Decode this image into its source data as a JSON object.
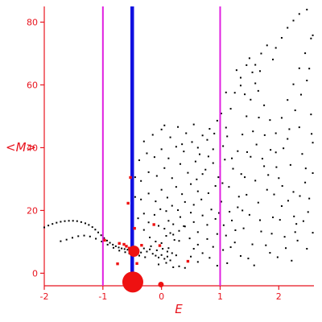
{
  "chart_data": {
    "type": "scatter",
    "title": "",
    "xlabel": "E",
    "ylabel": "<M>",
    "xlim": [
      -2,
      2.6
    ],
    "ylim": [
      -4,
      85
    ],
    "x_ticks": [
      -2,
      -1,
      0,
      1,
      2
    ],
    "y_ticks": [
      0,
      20,
      40,
      60,
      80
    ],
    "grid": false,
    "colors": {
      "axis": "#e8141e",
      "points": "#000000",
      "highlight": "#ee1111",
      "magenta_lines": "#e020e0",
      "blue_line": "#1010e0"
    },
    "vertical_lines": [
      {
        "x": -1.0,
        "color": "magenta"
      },
      {
        "x": 1.0,
        "color": "magenta"
      },
      {
        "x": -0.5,
        "color": "blue"
      }
    ],
    "large_markers": [
      {
        "x": -0.49,
        "y": -2.8,
        "size": "large"
      },
      {
        "x": -0.47,
        "y": 7.0,
        "size": "medium"
      },
      {
        "x": -0.01,
        "y": -3.6,
        "size": "small"
      }
    ],
    "highlight_points": [
      {
        "x": -0.53,
        "y": 30.5
      },
      {
        "x": -0.57,
        "y": 22.3
      },
      {
        "x": -0.46,
        "y": 14.3
      },
      {
        "x": -0.13,
        "y": 15.5
      },
      {
        "x": -0.03,
        "y": 8.8
      },
      {
        "x": -0.72,
        "y": 9.5
      },
      {
        "x": -0.64,
        "y": 9.2
      },
      {
        "x": -0.6,
        "y": 8.6
      },
      {
        "x": -0.55,
        "y": 8.0
      },
      {
        "x": -0.75,
        "y": 3.0
      },
      {
        "x": -0.42,
        "y": 3.1
      },
      {
        "x": -0.97,
        "y": 10.5
      },
      {
        "x": 0.45,
        "y": 3.8
      },
      {
        "x": -0.34,
        "y": 8.9
      }
    ],
    "series": [
      {
        "points": [
          [
            -2.0,
            14.6
          ],
          [
            -1.93,
            15.2
          ],
          [
            -1.86,
            15.7
          ],
          [
            -1.79,
            16.1
          ],
          [
            -1.72,
            16.4
          ],
          [
            -1.65,
            16.6
          ],
          [
            -1.58,
            16.7
          ],
          [
            -1.51,
            16.7
          ],
          [
            -1.44,
            16.6
          ],
          [
            -1.37,
            16.3
          ],
          [
            -1.3,
            15.9
          ],
          [
            -1.24,
            15.4
          ],
          [
            -1.18,
            14.7
          ],
          [
            -1.13,
            13.9
          ],
          [
            -1.08,
            13.0
          ],
          [
            -1.03,
            12.1
          ],
          [
            -0.98,
            11.2
          ],
          [
            -0.93,
            10.4
          ],
          [
            -0.88,
            9.7
          ],
          [
            -0.83,
            9.1
          ],
          [
            -0.78,
            8.6
          ],
          [
            -0.73,
            8.2
          ],
          [
            -0.68,
            7.9
          ],
          [
            -0.63,
            7.7
          ],
          [
            -0.58,
            7.5
          ],
          [
            -1.72,
            10.2
          ],
          [
            -1.62,
            10.7
          ],
          [
            -1.52,
            11.3
          ],
          [
            -1.42,
            11.8
          ],
          [
            -1.32,
            12.0
          ],
          [
            -1.22,
            11.7
          ],
          [
            -1.12,
            11.0
          ],
          [
            -1.02,
            10.1
          ],
          [
            -0.92,
            9.1
          ],
          [
            -0.82,
            8.1
          ],
          [
            -0.72,
            7.2
          ],
          [
            -0.62,
            6.7
          ],
          [
            -0.55,
            6.3
          ],
          [
            -0.4,
            7.4
          ],
          [
            -0.35,
            6.6
          ],
          [
            -0.3,
            7.9
          ],
          [
            -0.25,
            6.9
          ],
          [
            -0.2,
            7.6
          ],
          [
            -0.15,
            6.2
          ],
          [
            -0.1,
            5.6
          ],
          [
            -0.05,
            5.0
          ],
          [
            0.0,
            5.8
          ],
          [
            0.05,
            4.6
          ],
          [
            0.1,
            5.3
          ],
          [
            0.15,
            4.1
          ],
          [
            -0.38,
            5.6
          ],
          [
            -0.28,
            5.1
          ],
          [
            -0.18,
            8.6
          ],
          [
            -0.08,
            7.3
          ],
          [
            0.02,
            7.8
          ],
          [
            0.1,
            6.9
          ],
          [
            0.18,
            6.4
          ],
          [
            0.25,
            5.7
          ],
          [
            -0.2,
            11.4
          ],
          [
            -0.1,
            10.1
          ],
          [
            0.0,
            9.6
          ],
          [
            0.08,
            11.9
          ],
          [
            0.15,
            12.8
          ],
          [
            0.22,
            10.6
          ],
          [
            0.3,
            13.5
          ],
          [
            -0.3,
            13.8
          ],
          [
            -0.22,
            16.2
          ],
          [
            -0.05,
            15.1
          ],
          [
            0.05,
            14.2
          ],
          [
            0.12,
            16.7
          ],
          [
            0.2,
            15.6
          ],
          [
            0.32,
            17.9
          ],
          [
            0.38,
            15.0
          ],
          [
            -0.4,
            17.5
          ],
          [
            -0.3,
            19.0
          ],
          [
            -0.12,
            18.6
          ],
          [
            -0.02,
            20.4
          ],
          [
            0.08,
            19.8
          ],
          [
            0.18,
            21.5
          ],
          [
            0.28,
            20.1
          ],
          [
            0.4,
            22.7
          ],
          [
            0.5,
            19.3
          ],
          [
            -0.45,
            24.3
          ],
          [
            -0.35,
            23.5
          ],
          [
            -0.22,
            25.4
          ],
          [
            -0.1,
            22.9
          ],
          [
            0.0,
            26.6
          ],
          [
            0.1,
            24.1
          ],
          [
            0.25,
            27.5
          ],
          [
            0.35,
            25.2
          ],
          [
            0.5,
            28.4
          ],
          [
            0.62,
            26.1
          ],
          [
            -0.45,
            30.6
          ],
          [
            -0.35,
            29.4
          ],
          [
            -0.22,
            32.2
          ],
          [
            -0.08,
            31.0
          ],
          [
            0.05,
            33.5
          ],
          [
            0.18,
            30.3
          ],
          [
            0.32,
            34.8
          ],
          [
            0.45,
            32.0
          ],
          [
            0.58,
            35.6
          ],
          [
            0.7,
            31.6
          ],
          [
            -0.38,
            36.0
          ],
          [
            -0.25,
            38.2
          ],
          [
            -0.12,
            37.0
          ],
          [
            0.0,
            39.5
          ],
          [
            0.12,
            36.6
          ],
          [
            0.25,
            40.3
          ],
          [
            0.38,
            38.8
          ],
          [
            0.52,
            41.8
          ],
          [
            0.65,
            37.9
          ],
          [
            0.78,
            42.5
          ],
          [
            -0.3,
            42.0
          ],
          [
            -0.15,
            44.1
          ],
          [
            0.0,
            45.8
          ],
          [
            0.15,
            43.3
          ],
          [
            0.28,
            46.6
          ],
          [
            0.42,
            44.6
          ],
          [
            0.55,
            47.4
          ],
          [
            0.7,
            43.9
          ],
          [
            0.82,
            46.0
          ],
          [
            0.95,
            48.6
          ],
          [
            0.05,
            47.1
          ],
          [
            0.35,
            41.1
          ],
          [
            0.62,
            40.0
          ],
          [
            0.88,
            39.5
          ],
          [
            0.2,
            12.3
          ],
          [
            0.3,
            10.3
          ],
          [
            0.4,
            14.9
          ],
          [
            0.48,
            11.1
          ],
          [
            0.55,
            16.3
          ],
          [
            0.62,
            13.1
          ],
          [
            0.7,
            18.4
          ],
          [
            0.78,
            15.4
          ],
          [
            0.85,
            20.3
          ],
          [
            0.92,
            17.3
          ],
          [
            0.55,
            7.8
          ],
          [
            0.62,
            9.1
          ],
          [
            0.7,
            6.4
          ],
          [
            0.78,
            10.9
          ],
          [
            0.88,
            8.4
          ],
          [
            0.95,
            12.5
          ],
          [
            0.5,
            5.3
          ],
          [
            0.62,
            3.6
          ],
          [
            0.82,
            4.9
          ],
          [
            0.95,
            2.4
          ],
          [
            0.3,
            2.2
          ],
          [
            0.4,
            1.7
          ],
          [
            0.55,
            21.8
          ],
          [
            0.68,
            23.5
          ],
          [
            0.8,
            25.5
          ],
          [
            0.92,
            27.8
          ],
          [
            0.6,
            29.9
          ],
          [
            0.75,
            33.0
          ],
          [
            0.88,
            35.1
          ],
          [
            0.97,
            30.6
          ],
          [
            -0.05,
            2.8
          ],
          [
            0.08,
            3.3
          ],
          [
            0.2,
            1.9
          ],
          [
            0.12,
            8.0
          ],
          [
            1.05,
            7.4
          ],
          [
            1.1,
            12.0
          ],
          [
            1.12,
            3.2
          ],
          [
            1.2,
            16.8
          ],
          [
            1.25,
            9.8
          ],
          [
            1.3,
            21.0
          ],
          [
            1.35,
            5.5
          ],
          [
            1.4,
            14.3
          ],
          [
            1.45,
            25.0
          ],
          [
            1.5,
            18.6
          ],
          [
            1.55,
            9.2
          ],
          [
            1.6,
            29.5
          ],
          [
            1.65,
            22.5
          ],
          [
            1.7,
            13.3
          ],
          [
            1.75,
            34.1
          ],
          [
            1.8,
            26.6
          ],
          [
            1.85,
            6.5
          ],
          [
            1.9,
            17.8
          ],
          [
            1.95,
            38.5
          ],
          [
            2.0,
            30.3
          ],
          [
            2.05,
            21.4
          ],
          [
            2.1,
            11.6
          ],
          [
            2.15,
            42.8
          ],
          [
            2.2,
            34.5
          ],
          [
            2.25,
            25.9
          ],
          [
            2.3,
            15.7
          ],
          [
            2.35,
            46.5
          ],
          [
            2.4,
            38.0
          ],
          [
            2.45,
            28.9
          ],
          [
            2.5,
            19.5
          ],
          [
            2.55,
            50.6
          ],
          [
            2.58,
            41.6
          ],
          [
            1.15,
            27.5
          ],
          [
            1.22,
            33.3
          ],
          [
            1.3,
            38.9
          ],
          [
            1.38,
            44.2
          ],
          [
            1.45,
            50.0
          ],
          [
            1.52,
            55.3
          ],
          [
            1.6,
            60.5
          ],
          [
            1.68,
            64.4
          ],
          [
            1.05,
            40.5
          ],
          [
            1.1,
            46.4
          ],
          [
            1.18,
            52.4
          ],
          [
            1.25,
            57.5
          ],
          [
            1.35,
            62.3
          ],
          [
            1.45,
            66.3
          ],
          [
            1.55,
            64.0
          ],
          [
            1.65,
            58.1
          ],
          [
            1.75,
            53.5
          ],
          [
            1.85,
            48.8
          ],
          [
            1.95,
            44.6
          ],
          [
            2.05,
            49.5
          ],
          [
            2.15,
            55.2
          ],
          [
            2.25,
            60.2
          ],
          [
            2.35,
            65.3
          ],
          [
            2.45,
            70.1
          ],
          [
            2.55,
            74.8
          ],
          [
            1.95,
            71.8
          ],
          [
            2.05,
            75.0
          ],
          [
            2.15,
            78.2
          ],
          [
            2.25,
            80.5
          ],
          [
            2.35,
            82.6
          ],
          [
            2.48,
            84.0
          ],
          [
            2.58,
            75.8
          ],
          [
            2.52,
            65.2
          ],
          [
            1.7,
            70.0
          ],
          [
            1.8,
            72.6
          ],
          [
            1.9,
            68.1
          ],
          [
            1.6,
            66.4
          ],
          [
            1.5,
            68.5
          ],
          [
            1.28,
            64.7
          ],
          [
            1.35,
            59.8
          ],
          [
            1.42,
            57.0
          ],
          [
            1.12,
            43.6
          ],
          [
            1.08,
            36.2
          ],
          [
            1.62,
            41.0
          ],
          [
            1.72,
            36.5
          ],
          [
            1.82,
            31.3
          ],
          [
            1.92,
            25.1
          ],
          [
            2.02,
            17.0
          ],
          [
            2.12,
            8.0
          ],
          [
            2.22,
            4.0
          ],
          [
            2.32,
            10.4
          ],
          [
            2.42,
            16.6
          ],
          [
            2.52,
            23.8
          ],
          [
            2.58,
            31.9
          ],
          [
            1.52,
            37.1
          ],
          [
            1.42,
            30.6
          ],
          [
            1.32,
            24.4
          ],
          [
            1.2,
            36.6
          ],
          [
            1.02,
            22.8
          ],
          [
            1.06,
            15.3
          ],
          [
            1.16,
            19.6
          ],
          [
            1.26,
            13.7
          ],
          [
            1.36,
            31.6
          ],
          [
            1.46,
            38.6
          ],
          [
            1.56,
            45.2
          ],
          [
            1.66,
            49.6
          ],
          [
            1.76,
            44.0
          ],
          [
            1.86,
            39.3
          ],
          [
            1.96,
            33.8
          ],
          [
            2.06,
            27.8
          ],
          [
            2.16,
            23.1
          ],
          [
            2.26,
            18.1
          ],
          [
            2.36,
            24.6
          ],
          [
            2.46,
            33.4
          ],
          [
            2.56,
            44.4
          ],
          [
            2.08,
            39.8
          ],
          [
            2.18,
            45.9
          ],
          [
            2.28,
            51.9
          ],
          [
            2.38,
            56.9
          ],
          [
            2.48,
            61.4
          ],
          [
            1.58,
            2.5
          ],
          [
            1.78,
            8.9
          ],
          [
            1.88,
            12.6
          ],
          [
            1.98,
            5.1
          ],
          [
            2.28,
            13.1
          ],
          [
            2.48,
            7.8
          ],
          [
            2.58,
            12.9
          ],
          [
            1.68,
            16.9
          ],
          [
            1.48,
            4.7
          ],
          [
            1.38,
            20.0
          ],
          [
            1.18,
            8.3
          ],
          [
            1.04,
            28.7
          ],
          [
            1.1,
            57.6
          ],
          [
            1.02,
            50.9
          ],
          [
            1.0,
            34.0
          ],
          [
            0.98,
            19.2
          ],
          [
            0.9,
            44.5
          ],
          [
            0.8,
            37.2
          ]
        ]
      }
    ]
  }
}
